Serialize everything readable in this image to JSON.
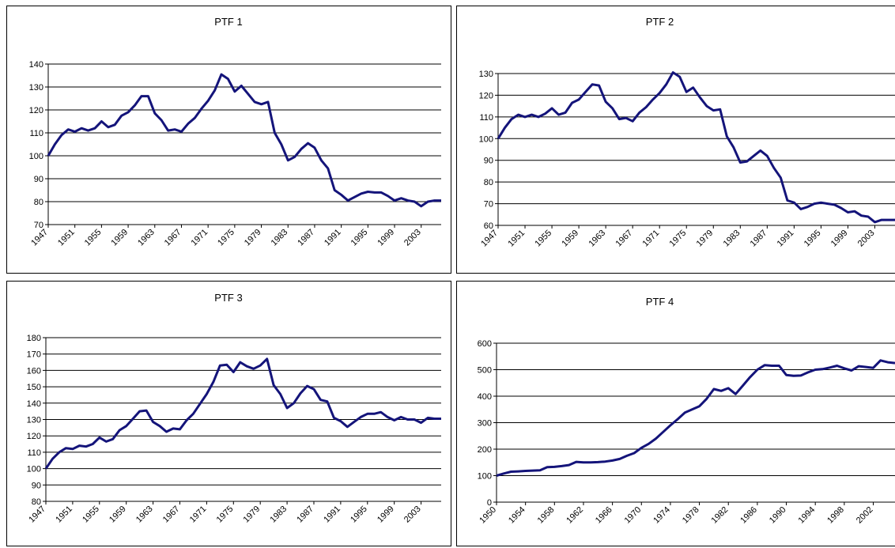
{
  "chart_data": [
    {
      "type": "line",
      "title": "PTF 1",
      "color": "#14147a",
      "grid": true,
      "x": [
        1947,
        1948,
        1949,
        1950,
        1951,
        1952,
        1953,
        1954,
        1955,
        1956,
        1957,
        1958,
        1959,
        1960,
        1961,
        1962,
        1963,
        1964,
        1965,
        1966,
        1967,
        1968,
        1969,
        1970,
        1971,
        1972,
        1973,
        1974,
        1975,
        1976,
        1977,
        1978,
        1979,
        1980,
        1981,
        1982,
        1983,
        1984,
        1985,
        1986,
        1987,
        1988,
        1989,
        1990,
        1991,
        1992,
        1993,
        1994,
        1995,
        1996,
        1997,
        1998,
        1999,
        2000,
        2001,
        2002,
        2003,
        2004,
        2005,
        2006
      ],
      "values": [
        100,
        105,
        109,
        111.5,
        110.5,
        112,
        111,
        112,
        115,
        112.5,
        113.5,
        117.5,
        119,
        122,
        126,
        126,
        118.5,
        115.5,
        111,
        111.5,
        110.5,
        114,
        116.5,
        120.5,
        124,
        128.5,
        135.5,
        133.5,
        128,
        130.5,
        127,
        123.5,
        122.5,
        123.5,
        110,
        105,
        98,
        99.5,
        103,
        105.5,
        103.5,
        98,
        94.5,
        85,
        83,
        80.5,
        82,
        83.5,
        84.3,
        84,
        84,
        82.5,
        80.5,
        81.5,
        80.5,
        80,
        78,
        80,
        80.5,
        80.5
      ],
      "xlim": [
        1947,
        2006
      ],
      "xticks": [
        1947,
        1951,
        1955,
        1959,
        1963,
        1967,
        1971,
        1975,
        1979,
        1983,
        1987,
        1991,
        1995,
        1999,
        2003
      ],
      "ylim": [
        70,
        140
      ],
      "yticks": [
        70,
        80,
        90,
        100,
        110,
        120,
        130,
        140
      ]
    },
    {
      "type": "line",
      "title": "PTF 2",
      "color": "#14147a",
      "grid": true,
      "x": [
        1947,
        1948,
        1949,
        1950,
        1951,
        1952,
        1953,
        1954,
        1955,
        1956,
        1957,
        1958,
        1959,
        1960,
        1961,
        1962,
        1963,
        1964,
        1965,
        1966,
        1967,
        1968,
        1969,
        1970,
        1971,
        1972,
        1973,
        1974,
        1975,
        1976,
        1977,
        1978,
        1979,
        1980,
        1981,
        1982,
        1983,
        1984,
        1985,
        1986,
        1987,
        1988,
        1989,
        1990,
        1991,
        1992,
        1993,
        1994,
        1995,
        1996,
        1997,
        1998,
        1999,
        2000,
        2001,
        2002,
        2003,
        2004,
        2005,
        2006
      ],
      "values": [
        100,
        105,
        109,
        111,
        110,
        111,
        110,
        111.5,
        114,
        111,
        112,
        116.5,
        118,
        121.5,
        125,
        124.5,
        117,
        114,
        109,
        109.5,
        108,
        112,
        114.5,
        118,
        121,
        125,
        130.5,
        128.5,
        121.5,
        123.5,
        119,
        115,
        113,
        113.5,
        101,
        96,
        89,
        89.5,
        92,
        94.5,
        92,
        86.5,
        82,
        71.5,
        70.5,
        67.5,
        68.5,
        70,
        70.5,
        70,
        69.5,
        68,
        66,
        66.5,
        64.5,
        64,
        61.5,
        62.5,
        62.5,
        62.5
      ],
      "xlim": [
        1947,
        2006
      ],
      "xticks": [
        1947,
        1951,
        1955,
        1959,
        1963,
        1967,
        1971,
        1975,
        1979,
        1983,
        1987,
        1991,
        1995,
        1999,
        2003
      ],
      "ylim": [
        60,
        130
      ],
      "yticks": [
        60,
        70,
        80,
        90,
        100,
        110,
        120,
        130
      ]
    },
    {
      "type": "line",
      "title": "PTF 3",
      "color": "#14147a",
      "grid": true,
      "x": [
        1947,
        1948,
        1949,
        1950,
        1951,
        1952,
        1953,
        1954,
        1955,
        1956,
        1957,
        1958,
        1959,
        1960,
        1961,
        1962,
        1963,
        1964,
        1965,
        1966,
        1967,
        1968,
        1969,
        1970,
        1971,
        1972,
        1973,
        1974,
        1975,
        1976,
        1977,
        1978,
        1979,
        1980,
        1981,
        1982,
        1983,
        1984,
        1985,
        1986,
        1987,
        1988,
        1989,
        1990,
        1991,
        1992,
        1993,
        1994,
        1995,
        1996,
        1997,
        1998,
        1999,
        2000,
        2001,
        2002,
        2003,
        2004,
        2005,
        2006
      ],
      "values": [
        100,
        106,
        110,
        112.5,
        112,
        114,
        113.5,
        115,
        119,
        116.5,
        118,
        123.5,
        126,
        130.5,
        135,
        135.5,
        128.5,
        126,
        122.5,
        124.5,
        124,
        129.5,
        133.5,
        139.5,
        145.5,
        153,
        163,
        163.5,
        159,
        165,
        162.5,
        161,
        163,
        167,
        151,
        145.5,
        137,
        140,
        146,
        150.5,
        148.5,
        142,
        141,
        131,
        129,
        125.5,
        128.5,
        131.5,
        133.5,
        133.5,
        134.5,
        131.5,
        129.5,
        131.5,
        130,
        130,
        128,
        131,
        130.5,
        130.5
      ],
      "xlim": [
        1947,
        2006
      ],
      "xticks": [
        1947,
        1951,
        1955,
        1959,
        1963,
        1967,
        1971,
        1975,
        1979,
        1983,
        1987,
        1991,
        1995,
        1999,
        2003
      ],
      "ylim": [
        80,
        180
      ],
      "yticks": [
        80,
        90,
        100,
        110,
        120,
        130,
        140,
        150,
        160,
        170,
        180
      ]
    },
    {
      "type": "line",
      "title": "PTF 4",
      "color": "#14147a",
      "grid": true,
      "x": [
        1950,
        1951,
        1952,
        1953,
        1954,
        1955,
        1956,
        1957,
        1958,
        1959,
        1960,
        1961,
        1962,
        1963,
        1964,
        1965,
        1966,
        1967,
        1968,
        1969,
        1970,
        1971,
        1972,
        1973,
        1974,
        1975,
        1976,
        1977,
        1978,
        1979,
        1980,
        1981,
        1982,
        1983,
        1984,
        1985,
        1986,
        1987,
        1988,
        1989,
        1990,
        1991,
        1992,
        1993,
        1994,
        1995,
        1996,
        1997,
        1998,
        1999,
        2000,
        2001,
        2002,
        2003,
        2004,
        2005
      ],
      "values": [
        100,
        108,
        115,
        116,
        118,
        119,
        120,
        132,
        133,
        136,
        140,
        152,
        150,
        150,
        151,
        153,
        157,
        163,
        175,
        185,
        205,
        220,
        240,
        265,
        290,
        313,
        338,
        350,
        362,
        390,
        427,
        420,
        430,
        408,
        440,
        472,
        500,
        517,
        515,
        515,
        480,
        477,
        478,
        490,
        500,
        502,
        508,
        515,
        505,
        497,
        513,
        510,
        507,
        535,
        528,
        525
      ],
      "xlim": [
        1950,
        2005
      ],
      "xticks": [
        1950,
        1954,
        1958,
        1962,
        1966,
        1970,
        1974,
        1978,
        1982,
        1986,
        1990,
        1994,
        1998,
        2002
      ],
      "ylim": [
        0,
        600
      ],
      "yticks": [
        0,
        100,
        200,
        300,
        400,
        500,
        600
      ]
    }
  ]
}
